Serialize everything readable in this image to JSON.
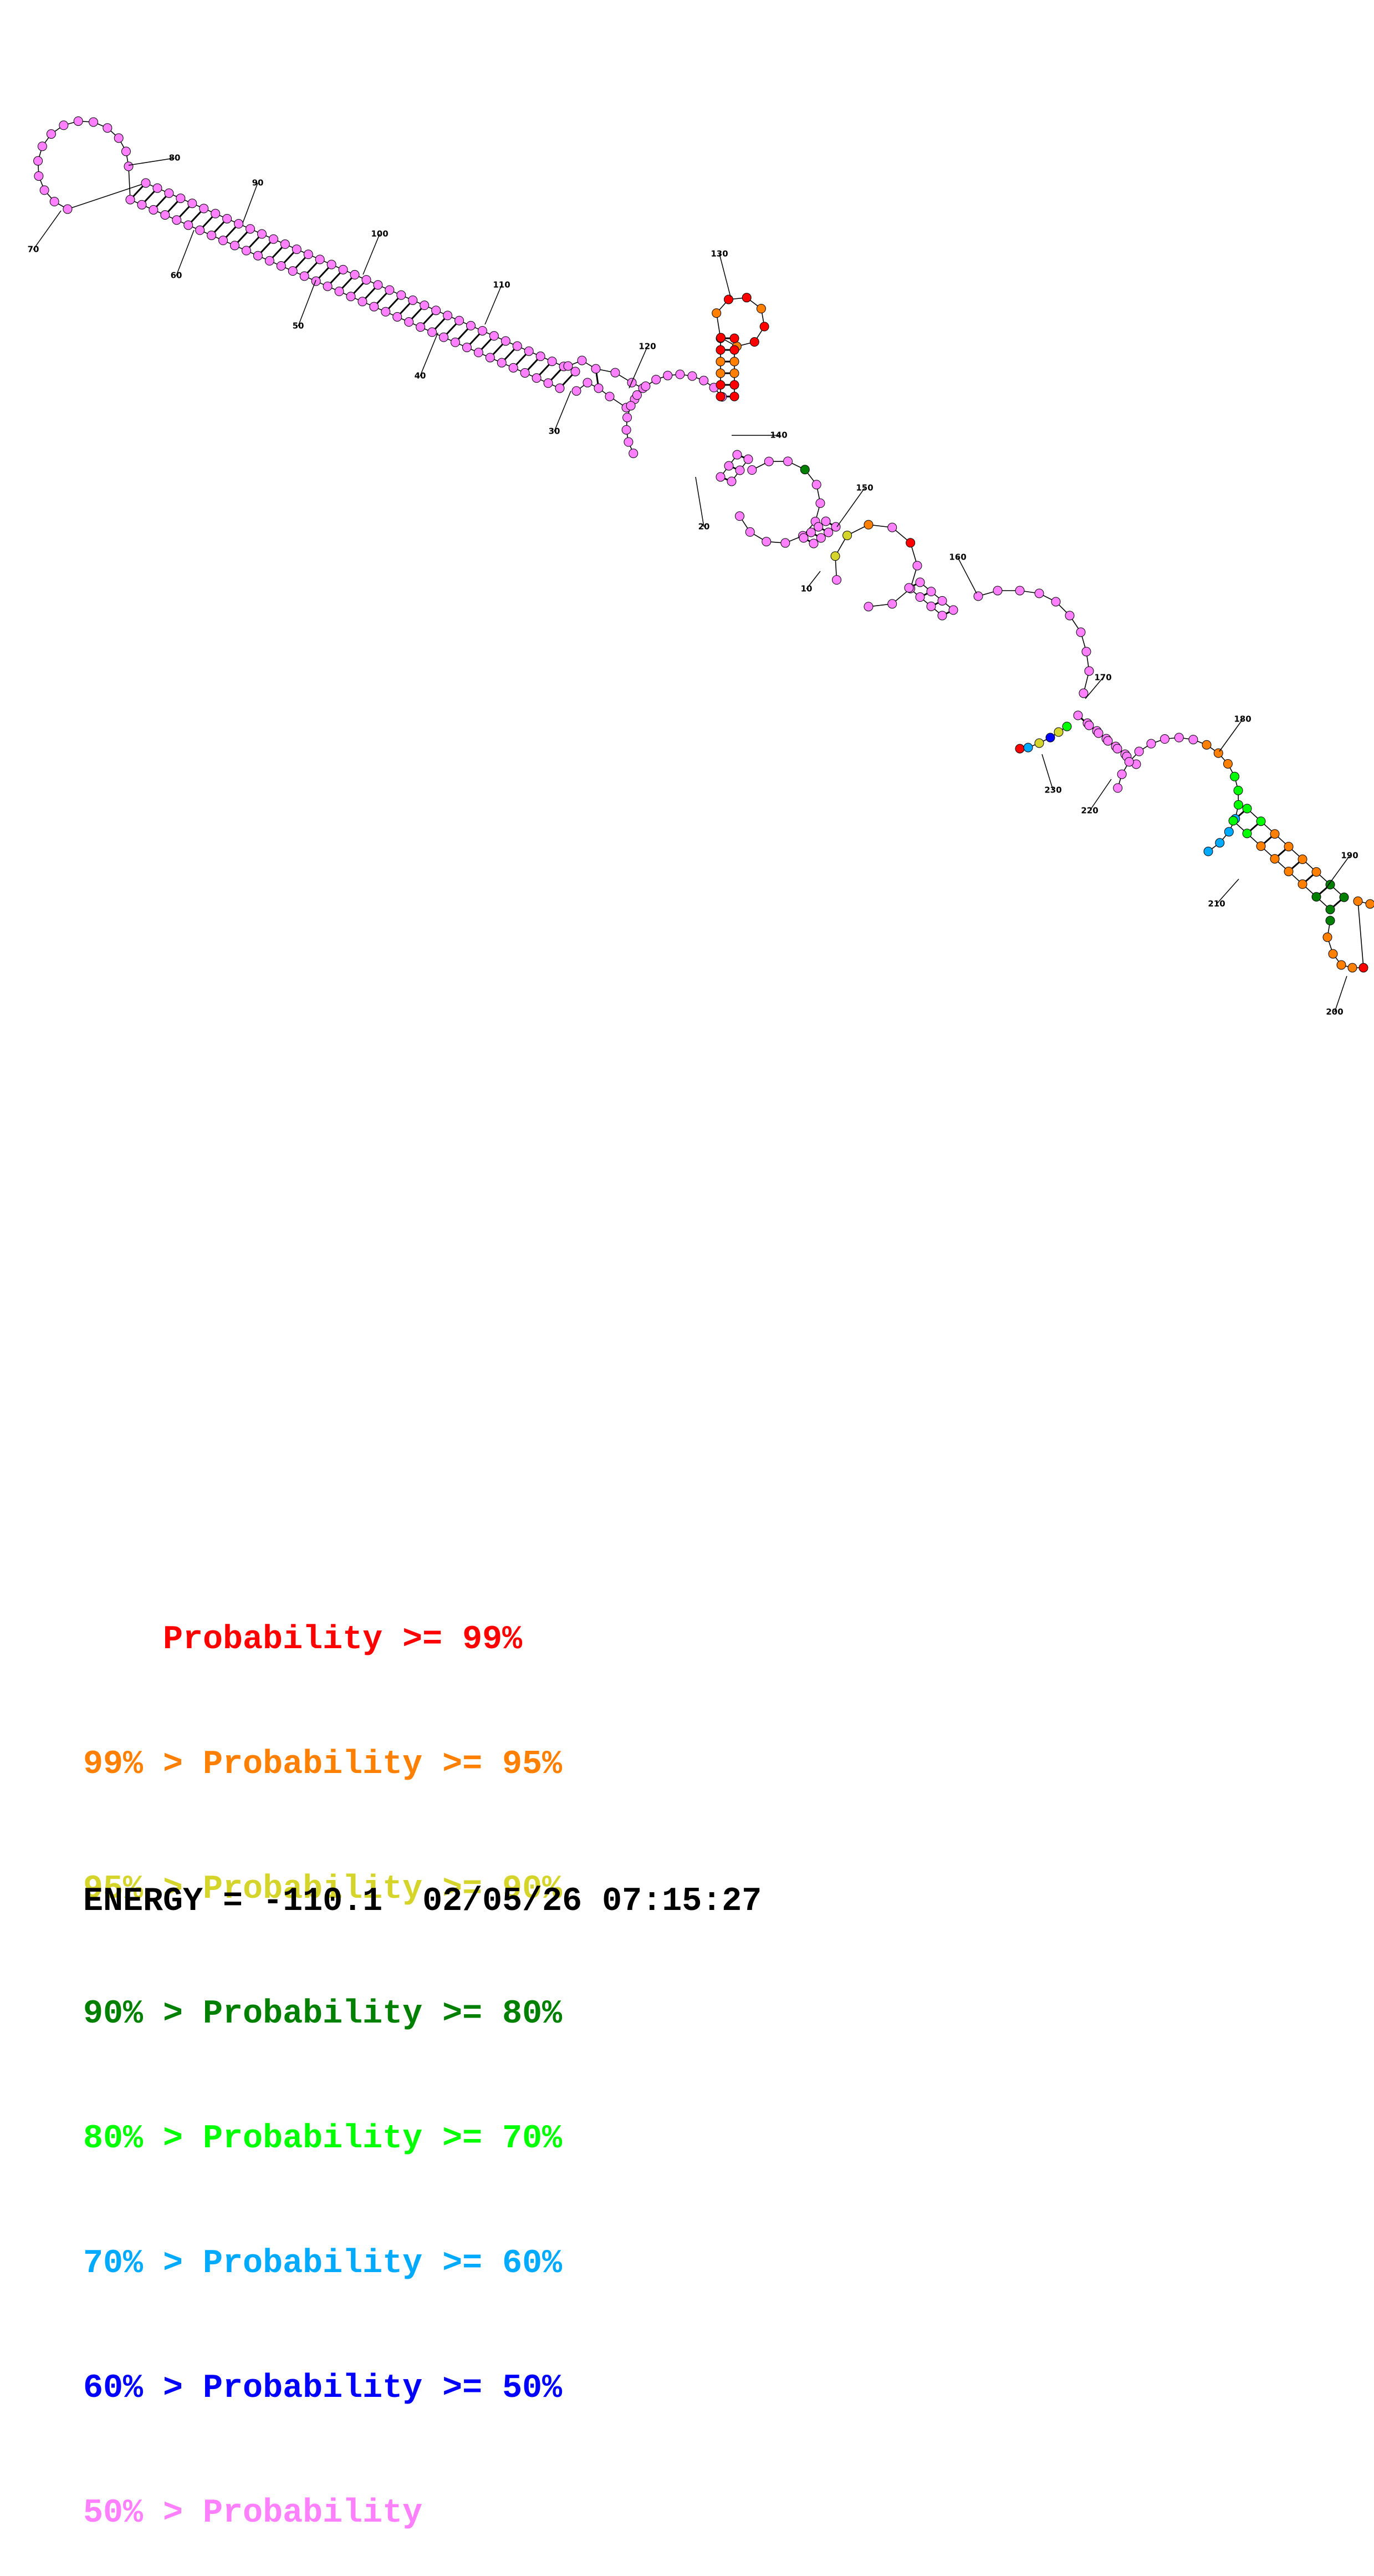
{
  "diagram": {
    "type": "rna-secondary-structure",
    "colors": {
      "p99": "#ff0000",
      "p95": "#ff8000",
      "p90": "#d4d42a",
      "p80": "#008000",
      "p70": "#00ff00",
      "p60": "#00aaff",
      "p50": "#0000ff",
      "p0": "#ff80ff",
      "line": "#000000"
    },
    "position_labels": [
      "10",
      "20",
      "30",
      "40",
      "50",
      "60",
      "70",
      "80",
      "90",
      "100",
      "110",
      "120",
      "130",
      "140",
      "150",
      "160",
      "170",
      "180",
      "190",
      "200",
      "210",
      "220",
      "230"
    ]
  },
  "legend": [
    {
      "prefix": "    ",
      "text": "Probability >= 99%",
      "color": "#ff0000"
    },
    {
      "prefix": "99% > ",
      "text": "Probability >= 95%",
      "color": "#ff8000"
    },
    {
      "prefix": "95% > ",
      "text": "Probability >= 90%",
      "color": "#d4d42a"
    },
    {
      "prefix": "90% > ",
      "text": "Probability >= 80%",
      "color": "#008000"
    },
    {
      "prefix": "80% > ",
      "text": "Probability >= 70%",
      "color": "#00ff00"
    },
    {
      "prefix": "70% > ",
      "text": "Probability >= 60%",
      "color": "#00aaff"
    },
    {
      "prefix": "60% > ",
      "text": "Probability >= 50%",
      "color": "#0000ff"
    },
    {
      "prefix": "50% > ",
      "text": "Probability",
      "color": "#ff80ff"
    }
  ],
  "energy": {
    "label": "ENERGY = ",
    "value": "-110.1",
    "timestamp": "02/05/26 07:15:27"
  }
}
